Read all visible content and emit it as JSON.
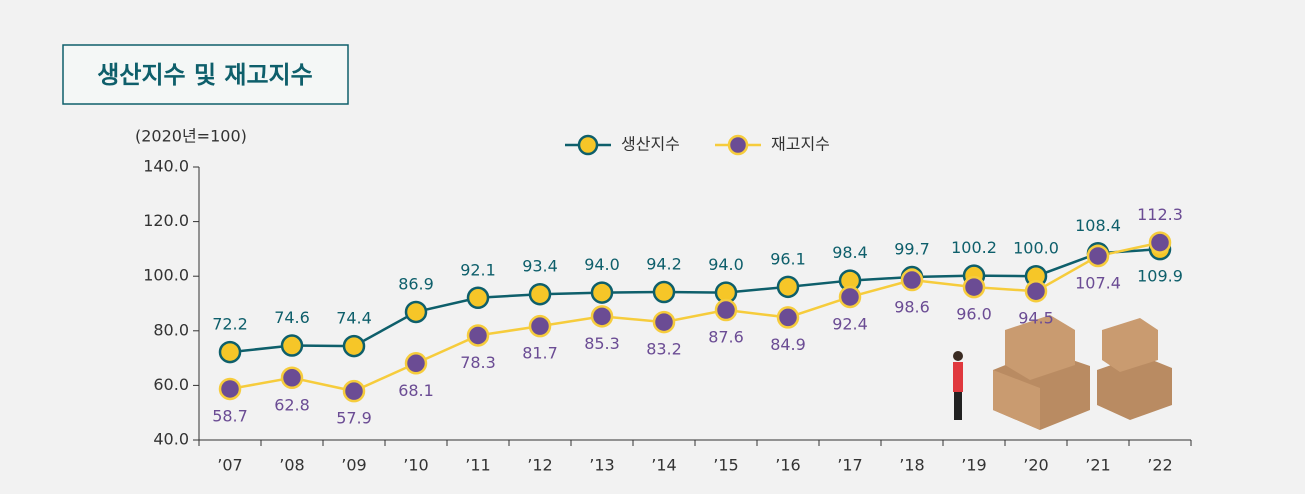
{
  "chart_data": {
    "type": "line",
    "title": "생산지수 및 재고지수",
    "y_unit": "(2020년=100)",
    "categories": [
      "’07",
      "’08",
      "’09",
      "’10",
      "’11",
      "’12",
      "’13",
      "’14",
      "’15",
      "’16",
      "’17",
      "’18",
      "’19",
      "’20",
      "’21",
      "’22"
    ],
    "series": [
      {
        "name": "생산지수",
        "color": "#0e5f6b",
        "marker_color": "#f6c628",
        "values": [
          72.2,
          74.6,
          74.4,
          86.9,
          92.1,
          93.4,
          94.0,
          94.2,
          94.0,
          96.1,
          98.4,
          99.7,
          100.2,
          100.0,
          108.4,
          109.9
        ],
        "value_labels": [
          "72.2",
          "74.6",
          "74.4",
          "86.9",
          "92.1",
          "93.4",
          "94.0",
          "94.2",
          "94.0",
          "96.1",
          "98.4",
          "99.7",
          "100.2",
          "100.0",
          "108.4",
          "109.9"
        ]
      },
      {
        "name": "재고지수",
        "color": "#f6cc3c",
        "marker_color": "#6b4c94",
        "values": [
          58.7,
          62.8,
          57.9,
          68.1,
          78.3,
          81.7,
          85.3,
          83.2,
          87.6,
          84.9,
          92.4,
          98.6,
          96.0,
          94.5,
          107.4,
          112.3
        ],
        "value_labels": [
          "58.7",
          "62.8",
          "57.9",
          "68.1",
          "78.3",
          "81.7",
          "85.3",
          "83.2",
          "87.6",
          "84.9",
          "92.4",
          "98.6",
          "96.0",
          "94.5",
          "107.4",
          "112.3"
        ]
      }
    ],
    "ylim": [
      40,
      140
    ],
    "yticks": [
      {
        "value": 40,
        "label": "40.0"
      },
      {
        "value": 60,
        "label": "60.0"
      },
      {
        "value": 80,
        "label": "80.0"
      },
      {
        "value": 100,
        "label": "100.0"
      },
      {
        "value": 120,
        "label": "120.0"
      },
      {
        "value": 140,
        "label": "140.0"
      }
    ]
  }
}
